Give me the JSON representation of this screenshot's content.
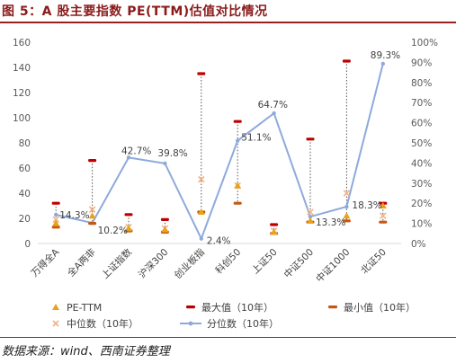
{
  "figure_title": "图 5：A 股主要指数 PE(TTM)估值对比情况",
  "source": "数据来源：wind、西南证券整理",
  "colors": {
    "title": "#8b1a1a",
    "pe": "#e8a317",
    "max": "#c00000",
    "min": "#c65911",
    "median": "#f4b183",
    "percentile": "#8eaadb",
    "connector": "#555555",
    "axis_text": "#595959",
    "axis_line": "#d9d9d9"
  },
  "chart_data": {
    "type": "scatter",
    "categories": [
      "万得全A",
      "全A两非",
      "上证指数",
      "沪深300",
      "创业板指",
      "科创50",
      "上证50",
      "中证500",
      "中证1000",
      "北证50"
    ],
    "y_left": {
      "range": [
        0,
        160
      ],
      "ticks": [
        "0",
        "20",
        "40",
        "60",
        "80",
        "100",
        "120",
        "140",
        "160"
      ]
    },
    "y_right": {
      "range": [
        0,
        100
      ],
      "ticks": [
        "0%",
        "10%",
        "20%",
        "30%",
        "40%",
        "50%",
        "60%",
        "70%",
        "80%",
        "90%",
        "100%"
      ]
    },
    "series": [
      {
        "name": "PE-TTM",
        "axis": "left",
        "marker": "triangle",
        "values": [
          16,
          22,
          12,
          11,
          25,
          46,
          9,
          18,
          22,
          30
        ]
      },
      {
        "name": "最大值（10年）",
        "axis": "left",
        "marker": "dash",
        "values": [
          32,
          66,
          23,
          19,
          135,
          97,
          15,
          83,
          145,
          32
        ]
      },
      {
        "name": "最小值（10年）",
        "axis": "left",
        "marker": "dash",
        "values": [
          13,
          16,
          10,
          9,
          25,
          32,
          8,
          17,
          18,
          17
        ]
      },
      {
        "name": "中位数（10年）",
        "axis": "left",
        "marker": "x",
        "values": [
          19,
          27,
          13,
          12,
          51,
          46,
          10,
          25,
          40,
          22
        ]
      },
      {
        "name": "分位数（10年）",
        "axis": "right",
        "marker": "line-dot",
        "values": [
          14.3,
          10.2,
          42.7,
          39.8,
          2.4,
          51.1,
          64.7,
          13.3,
          18.3,
          89.3
        ]
      }
    ],
    "data_labels": [
      "14.3%",
      "10.2%",
      "42.7%",
      "39.8%",
      "2.4%",
      "51.1%",
      "64.7%",
      "13.3%",
      "18.3%",
      "89.3%"
    ],
    "legend": {
      "position": "bottom",
      "items": [
        "PE-TTM",
        "最大值（10年）",
        "最小值（10年）",
        "中位数（10年）",
        "分位数（10年）"
      ]
    },
    "grid": false
  }
}
